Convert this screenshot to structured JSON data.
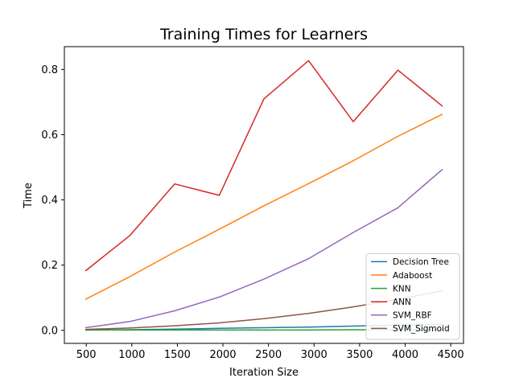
{
  "chart_data": {
    "type": "line",
    "title": "Training Times for Learners",
    "xlabel": "Iteration Size",
    "ylabel": "Time",
    "xlim": [
      260,
      4640
    ],
    "ylim": [
      -0.04,
      0.87
    ],
    "xticks": [
      500,
      1000,
      1500,
      2000,
      2500,
      3000,
      3500,
      4000,
      4500
    ],
    "yticks": [
      0.0,
      0.2,
      0.4,
      0.6,
      0.8
    ],
    "x": [
      490,
      980,
      1470,
      1960,
      2450,
      2940,
      3430,
      3920,
      4410
    ],
    "legend_position": "lower-right",
    "grid": false,
    "series": [
      {
        "name": "Decision Tree",
        "color": "#1f77b4",
        "values": [
          0.001,
          0.002,
          0.004,
          0.006,
          0.008,
          0.01,
          0.013,
          0.016,
          0.019
        ]
      },
      {
        "name": "Adaboost",
        "color": "#ff7f0e",
        "values": [
          0.095,
          0.165,
          0.24,
          0.31,
          0.382,
          0.45,
          0.52,
          0.595,
          0.663
        ]
      },
      {
        "name": "KNN",
        "color": "#2ca02c",
        "values": [
          0.001,
          0.001,
          0.001,
          0.001,
          0.001,
          0.001,
          0.002,
          0.002,
          0.002
        ]
      },
      {
        "name": "ANN",
        "color": "#d62728",
        "values": [
          0.182,
          0.291,
          0.449,
          0.414,
          0.71,
          0.827,
          0.64,
          0.798,
          0.687
        ]
      },
      {
        "name": "SVM_RBF",
        "color": "#9467bd",
        "values": [
          0.008,
          0.027,
          0.06,
          0.102,
          0.157,
          0.22,
          0.3,
          0.376,
          0.494
        ]
      },
      {
        "name": "SVM_Sigmoid",
        "color": "#8c564b",
        "values": [
          0.003,
          0.007,
          0.014,
          0.023,
          0.036,
          0.052,
          0.072,
          0.095,
          0.121
        ]
      }
    ]
  }
}
